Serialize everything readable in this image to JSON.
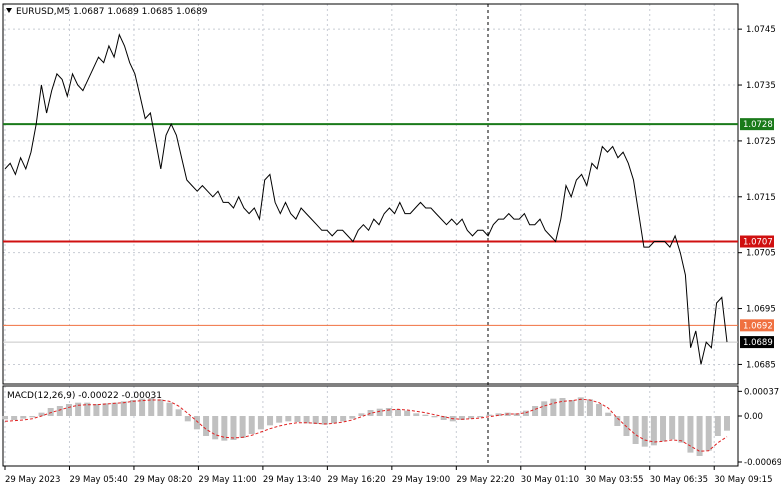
{
  "symbol_header": "EURUSD,M5  1.0687 1.0689 1.0685 1.0689",
  "macd_header": "MACD(12,26,9) -0.00022 -0.00031",
  "colors": {
    "price_line": "#000000",
    "green_level": "#1a7a1a",
    "red_level": "#d01010",
    "orange_level": "#f07040",
    "current_label_bg": "#000000",
    "grid": "#c8ccd4",
    "macd_hist": "#c0c0c0",
    "macd_signal": "#e02020"
  },
  "chart_data": {
    "type": "line",
    "y_range": [
      1.06815,
      1.07495
    ],
    "y_ticks": [
      "1.0745",
      "1.0735",
      "1.0725",
      "1.0715",
      "1.0705",
      "1.0695",
      "1.0685"
    ],
    "x_labels": [
      "29 May 2023",
      "29 May 05:40",
      "29 May 08:20",
      "29 May 11:00",
      "29 May 13:40",
      "29 May 16:20",
      "29 May 19:00",
      "29 May 22:20",
      "30 May 01:10",
      "30 May 03:55",
      "30 May 06:35",
      "30 May 09:15"
    ],
    "price_series": [
      1.072,
      1.0721,
      1.0719,
      1.0722,
      1.072,
      1.0723,
      1.0728,
      1.0735,
      1.073,
      1.0734,
      1.0737,
      1.0736,
      1.0733,
      1.0737,
      1.0735,
      1.0734,
      1.0736,
      1.0738,
      1.074,
      1.0739,
      1.0742,
      1.074,
      1.0744,
      1.0742,
      1.0739,
      1.0737,
      1.0733,
      1.0729,
      1.073,
      1.0725,
      1.072,
      1.0726,
      1.0728,
      1.0726,
      1.0722,
      1.0718,
      1.0717,
      1.0716,
      1.0717,
      1.0716,
      1.0715,
      1.0716,
      1.0714,
      1.0714,
      1.0713,
      1.0715,
      1.0713,
      1.0712,
      1.0713,
      1.0711,
      1.0718,
      1.0719,
      1.0714,
      1.0712,
      1.0714,
      1.0712,
      1.0711,
      1.0713,
      1.0712,
      1.0711,
      1.071,
      1.0709,
      1.0709,
      1.0708,
      1.0709,
      1.0709,
      1.0708,
      1.0707,
      1.0709,
      1.071,
      1.0709,
      1.0711,
      1.071,
      1.0712,
      1.0713,
      1.0712,
      1.0714,
      1.0712,
      1.0712,
      1.0713,
      1.0714,
      1.0713,
      1.0713,
      1.0712,
      1.0711,
      1.071,
      1.0711,
      1.071,
      1.0711,
      1.0709,
      1.0708,
      1.0709,
      1.0709,
      1.0708,
      1.071,
      1.0711,
      1.0711,
      1.0712,
      1.0711,
      1.0711,
      1.0712,
      1.071,
      1.071,
      1.0711,
      1.0709,
      1.0708,
      1.0707,
      1.0711,
      1.0717,
      1.0715,
      1.0718,
      1.0719,
      1.0717,
      1.0721,
      1.072,
      1.0724,
      1.0723,
      1.0724,
      1.0722,
      1.0723,
      1.0721,
      1.0718,
      1.0712,
      1.0706,
      1.0706,
      1.0707,
      1.0707,
      1.0707,
      1.0706,
      1.0708,
      1.0705,
      1.0701,
      1.0688,
      1.0691,
      1.0685,
      1.0689,
      1.0688,
      1.0696,
      1.0697,
      1.0689
    ],
    "price_x_range": [
      0,
      139
    ],
    "levels": [
      {
        "value": 1.0728,
        "label": "1.0728",
        "role": "green"
      },
      {
        "value": 1.0707,
        "label": "1.0707",
        "role": "red"
      },
      {
        "value": 1.0692,
        "label": "1.0692",
        "role": "orange"
      },
      {
        "value": 1.0689,
        "label": "1.0689",
        "role": "current"
      }
    ],
    "macd": {
      "y_range": [
        -0.00075,
        0.00045
      ],
      "y_ticks": [
        0.00037,
        0.0,
        -0.00069
      ],
      "y_tick_labels": [
        "0.00037",
        "0.00",
        "-0.00069"
      ],
      "histogram": [
        -5e-05,
        -6e-05,
        -4e-05,
        -2e-05,
        5e-05,
        0.00012,
        0.00015,
        0.00018,
        0.0002,
        0.0002,
        0.00018,
        0.00019,
        0.0002,
        0.00022,
        0.00024,
        0.00026,
        0.00027,
        0.00025,
        0.0002,
        0.0001,
        -8e-05,
        -0.0002,
        -0.0003,
        -0.00035,
        -0.00037,
        -0.00036,
        -0.00033,
        -0.00027,
        -0.0002,
        -0.00014,
        -0.0001,
        -8e-05,
        -9e-05,
        -0.00011,
        -0.00012,
        -0.00013,
        -0.00011,
        -8e-05,
        -4e-05,
        4e-05,
        9e-05,
        0.00011,
        0.00012,
        0.0001,
        8e-05,
        4e-05,
        2e-05,
        -2e-05,
        -6e-05,
        -8e-05,
        -6e-05,
        -4e-05,
        -2e-05,
        2e-05,
        4e-05,
        5e-05,
        4e-05,
        8e-05,
        0.00015,
        0.00022,
        0.00026,
        0.00027,
        0.00024,
        0.00028,
        0.00025,
        0.00018,
        5e-05,
        -0.00015,
        -0.0003,
        -0.00042,
        -0.00046,
        -0.00044,
        -0.00038,
        -0.00035,
        -0.0004,
        -0.00055,
        -0.0006,
        -0.00052,
        -0.0003,
        -0.00022
      ],
      "signal": [
        -8e-05,
        -7e-05,
        -6e-05,
        -4e-05,
        0.0,
        5e-05,
        9e-05,
        0.00013,
        0.00016,
        0.00017,
        0.00017,
        0.00018,
        0.00019,
        0.0002,
        0.00022,
        0.00023,
        0.00024,
        0.00024,
        0.00022,
        0.00015,
        4e-05,
        -8e-05,
        -0.0002,
        -0.00028,
        -0.00032,
        -0.00033,
        -0.00032,
        -0.00029,
        -0.00024,
        -0.00019,
        -0.00015,
        -0.00012,
        -0.0001,
        -0.0001,
        -0.00011,
        -0.00012,
        -0.00011,
        -9e-05,
        -6e-05,
        -1e-05,
        4e-05,
        7e-05,
        9e-05,
        0.0001,
        9e-05,
        7e-05,
        5e-05,
        2e-05,
        -1e-05,
        -4e-05,
        -5e-05,
        -4e-05,
        -3e-05,
        -1e-05,
        1e-05,
        3e-05,
        3e-05,
        5e-05,
        0.0001,
        0.00015,
        0.00019,
        0.00022,
        0.00023,
        0.00025,
        0.00024,
        0.0002,
        0.00012,
        -3e-05,
        -0.00016,
        -0.00028,
        -0.00036,
        -0.00039,
        -0.00038,
        -0.00036,
        -0.00037,
        -0.00045,
        -0.00053,
        -0.00052,
        -0.0004,
        -0.00031
      ]
    },
    "grid": true
  }
}
